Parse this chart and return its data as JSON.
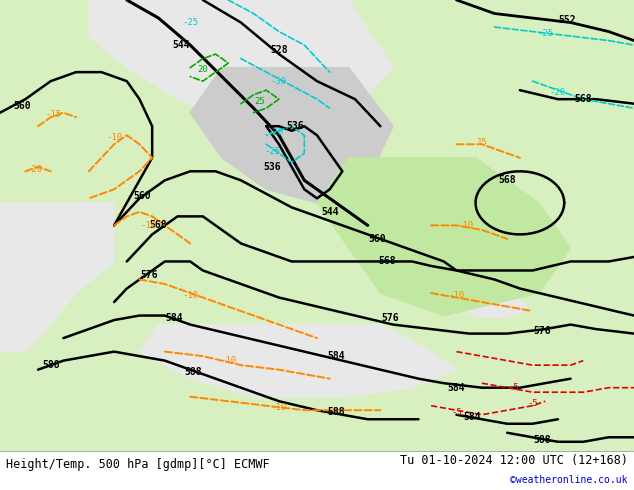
{
  "title_left": "Height/Temp. 500 hPa [gdmp][°C] ECMWF",
  "title_right": "Tu 01-10-2024 12:00 UTC (12+168)",
  "credit": "©weatheronline.co.uk",
  "background_land_light": "#d8f0c0",
  "background_land_dark": "#c8e8b0",
  "background_sea": "#e8e8e8",
  "background_gray": "#d0d0d0",
  "contour_z500_color": "#000000",
  "contour_temp_warm_color": "#ff8800",
  "contour_temp_cold_color": "#ff0000",
  "contour_regen_color": "#00aa00",
  "contour_regen_cyan_color": "#00cccc",
  "fig_width": 6.34,
  "fig_height": 4.9,
  "dpi": 100,
  "bottom_bar_color": "#f0f0f0",
  "bottom_bar_height": 0.08
}
